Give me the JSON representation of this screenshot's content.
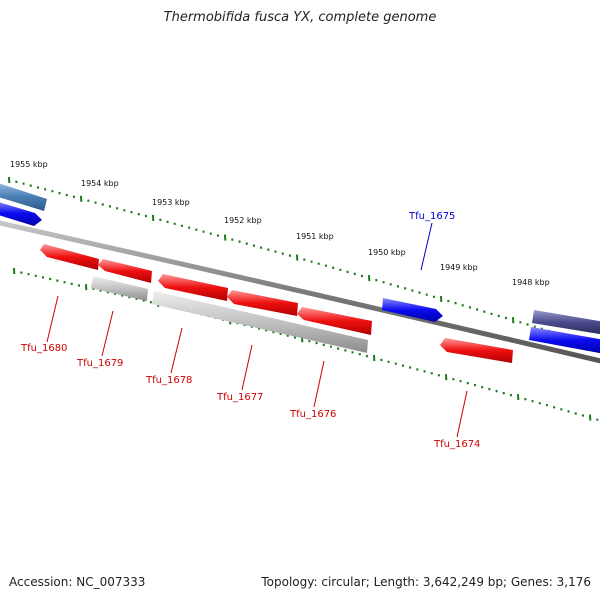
{
  "title": "Thermobifida fusca YX, complete genome",
  "accession": "Accession: NC_007333",
  "topology": "Topology: circular; Length: 3,642,249 bp; Genes: 3,176",
  "colors": {
    "backbone": "#808080",
    "tick": "#1a7a1a",
    "forward_gene": "#0000ee",
    "reverse_gene": "#ee0000",
    "rna_gene": "#bbbbbb",
    "feature_steelblue": "#4a7fb5",
    "feature_purple": "#4a4a8a",
    "label_forward": "#0000cc",
    "label_reverse": "#cc0000"
  },
  "scale": {
    "labels": [
      "1955 kbp",
      "1954 kbp",
      "1953 kbp",
      "1952 kbp",
      "1951 kbp",
      "1950 kbp",
      "1949 kbp",
      "1948 kbp"
    ]
  },
  "genes": [
    {
      "name": "Tfu_1680",
      "strand": "reverse",
      "color": "red"
    },
    {
      "name": "Tfu_1679",
      "strand": "reverse",
      "color": "red"
    },
    {
      "name": "Tfu_1678",
      "strand": "reverse",
      "color": "red"
    },
    {
      "name": "Tfu_1677",
      "strand": "reverse",
      "color": "red"
    },
    {
      "name": "Tfu_1676",
      "strand": "reverse",
      "color": "red"
    },
    {
      "name": "Tfu_1675",
      "strand": "forward",
      "color": "blue"
    },
    {
      "name": "Tfu_1674",
      "strand": "reverse",
      "color": "red"
    }
  ]
}
